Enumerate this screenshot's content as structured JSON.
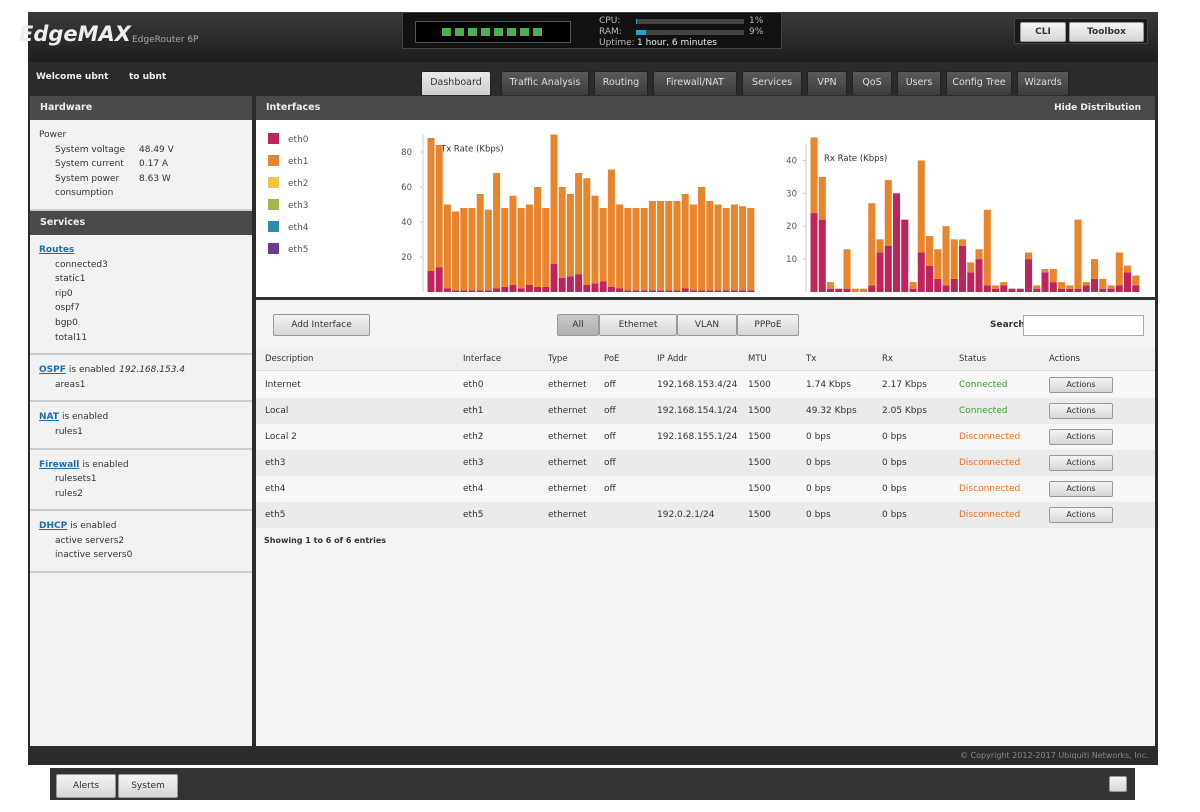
{
  "header": {
    "brand": "EdgeMAX",
    "model": "EdgeRouter 6P",
    "cpu_label": "CPU:",
    "cpu": {
      "value": 1,
      "label": "1%"
    },
    "ram_label": "RAM:",
    "ram": {
      "value": 9,
      "label": "9%"
    },
    "uptime_label": "Uptime:",
    "uptime": "1 hour, 6 minutes",
    "buttons": [
      "CLI",
      "Toolbox"
    ]
  },
  "user": {
    "welcome": "Welcome ubnt",
    "to": "to ubnt"
  },
  "tabs": [
    "Dashboard",
    "Traffic Analysis",
    "Routing",
    "Firewall/NAT",
    "Services",
    "VPN",
    "QoS",
    "Users",
    "Config Tree",
    "Wizards"
  ],
  "sidebar": {
    "hardware_title": "Hardware",
    "power_heading": "Power",
    "power_rows": [
      [
        "System voltage",
        "48.49 V"
      ],
      [
        "System current",
        "0.17 A"
      ],
      [
        "System power consumption",
        "8.63 W"
      ]
    ],
    "services_title": "Services",
    "sections": [
      {
        "link": "Routes",
        "rows": [
          [
            "connected",
            "3"
          ],
          [
            "static",
            "1"
          ],
          [
            "rip",
            "0"
          ],
          [
            "ospf",
            "7"
          ],
          [
            "bgp",
            "0"
          ],
          [
            "total",
            "11"
          ]
        ]
      },
      {
        "link": "OSPF",
        "suffix": "is enabled",
        "extra": "192.168.153.4",
        "rows": [
          [
            "areas",
            "1"
          ]
        ]
      },
      {
        "link": "NAT",
        "suffix": "is enabled",
        "rows": [
          [
            "rules",
            "1"
          ]
        ]
      },
      {
        "link": "Firewall",
        "suffix": "is enabled",
        "rows": [
          [
            "rulesets",
            "1"
          ],
          [
            "rules",
            "2"
          ]
        ]
      },
      {
        "link": "DHCP",
        "suffix": "is enabled",
        "rows": [
          [
            "active servers",
            "2"
          ],
          [
            "inactive servers",
            "0"
          ]
        ]
      }
    ]
  },
  "interfaces": {
    "title": "Interfaces",
    "hide": "Hide Distribution",
    "legend": [
      {
        "name": "eth0",
        "color": "#c0245c"
      },
      {
        "name": "eth1",
        "color": "#e8842c"
      },
      {
        "name": "eth2",
        "color": "#f2c53d"
      },
      {
        "name": "eth3",
        "color": "#a3b84a"
      },
      {
        "name": "eth4",
        "color": "#2a8fa8"
      },
      {
        "name": "eth5",
        "color": "#6c3a8c"
      }
    ],
    "charts": [
      {
        "type": "bar",
        "stacked": true,
        "title": "Tx Rate (Kbps)",
        "ylim": [
          0,
          90
        ],
        "yticks": [
          20,
          40,
          60,
          80
        ],
        "series": [
          {
            "values": [
              12,
              14,
              2,
              1,
              1,
              1,
              1,
              1,
              2,
              3,
              4,
              2,
              4,
              3,
              3,
              16,
              8,
              9,
              10,
              4,
              5,
              6,
              3,
              2,
              1,
              1,
              1,
              1,
              1,
              1,
              1,
              2,
              1,
              1,
              1,
              1,
              1,
              1,
              1,
              1
            ]
          },
          {
            "values": [
              76,
              70,
              48,
              45,
              47,
              47,
              55,
              46,
              66,
              45,
              51,
              46,
              46,
              57,
              45,
              74,
              52,
              47,
              58,
              61,
              50,
              42,
              67,
              48,
              47,
              47,
              47,
              51,
              51,
              51,
              51,
              54,
              49,
              59,
              51,
              49,
              47,
              49,
              48,
              47
            ]
          }
        ]
      },
      {
        "type": "bar",
        "stacked": true,
        "title": "Rx Rate (Kbps)",
        "ylim": [
          0,
          45
        ],
        "yticks": [
          10,
          20,
          30,
          40
        ],
        "series": [
          {
            "values": [
              24,
              22,
              1,
              1,
              1,
              0,
              0,
              2,
              12,
              14,
              30,
              22,
              1,
              12,
              8,
              4,
              2,
              4,
              14,
              6,
              10,
              2,
              1,
              2,
              1,
              1,
              10,
              1,
              6,
              3,
              1,
              1,
              1,
              2,
              4,
              1,
              1,
              2,
              6,
              2
            ]
          },
          {
            "values": [
              23,
              13,
              2,
              0,
              12,
              1,
              1,
              25,
              4,
              20,
              0,
              0,
              2,
              28,
              9,
              9,
              18,
              12,
              2,
              3,
              3,
              23,
              1,
              1,
              0,
              0,
              2,
              1,
              1,
              4,
              2,
              1,
              21,
              1,
              6,
              3,
              1,
              10,
              2,
              3
            ]
          }
        ]
      }
    ]
  },
  "toolbar": {
    "add": "Add Interface",
    "filters": [
      "All",
      "Ethernet",
      "VLAN",
      "PPPoE"
    ],
    "search": "Search"
  },
  "table": {
    "columns": [
      "Description",
      "Interface",
      "Type",
      "PoE",
      "IP Addr",
      "MTU",
      "Tx",
      "Rx",
      "Status",
      "Actions"
    ],
    "rows": [
      [
        "Internet",
        "eth0",
        "ethernet",
        "off",
        "192.168.153.4/24",
        "1500",
        "1.74 Kbps",
        "2.17 Kbps",
        "Connected",
        "Actions"
      ],
      [
        "Local",
        "eth1",
        "ethernet",
        "off",
        "192.168.154.1/24",
        "1500",
        "49.32 Kbps",
        "2.05 Kbps",
        "Connected",
        "Actions"
      ],
      [
        "Local 2",
        "eth2",
        "ethernet",
        "off",
        "192.168.155.1/24",
        "1500",
        "0 bps",
        "0 bps",
        "Disconnected",
        "Actions"
      ],
      [
        "eth3",
        "eth3",
        "ethernet",
        "off",
        null,
        "1500",
        "0 bps",
        "0 bps",
        "Disconnected",
        "Actions"
      ],
      [
        "eth4",
        "eth4",
        "ethernet",
        "off",
        null,
        "1500",
        "0 bps",
        "0 bps",
        "Disconnected",
        "Actions"
      ],
      [
        "eth5",
        "eth5",
        "ethernet",
        null,
        "192.0.2.1/24",
        "1500",
        "0 bps",
        "0 bps",
        "Disconnected",
        "Actions"
      ]
    ],
    "status_colors": [
      "#3a9a3a",
      "#3a9a3a",
      "#e8742c",
      "#e8742c",
      "#e8742c",
      "#e8742c"
    ],
    "footer": "Showing 1 to 6 of 6 entries"
  },
  "footer": {
    "copyright": "© Copyright 2012-2017 Ubiquiti Networks, Inc."
  },
  "bottom": [
    "Alerts",
    "System"
  ]
}
